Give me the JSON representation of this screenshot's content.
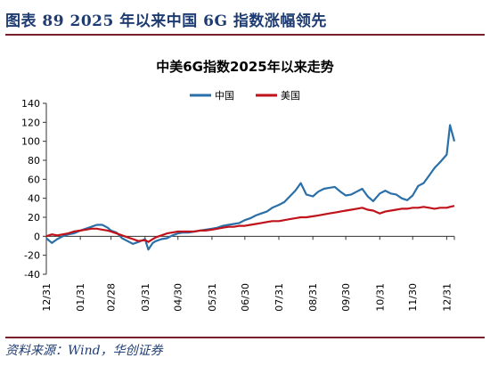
{
  "header": {
    "title": "图表 89   2025 年以来中国 6G 指数涨幅领先"
  },
  "footer": {
    "source": "资料来源：Wind，华创证券"
  },
  "colors": {
    "china": "#2a6fa8",
    "usa": "#c0121a",
    "accent": "#7a1f2b",
    "header_text": "#1e3c72"
  },
  "chart_data": {
    "type": "line",
    "title": "中美6G指数2025年以来走势",
    "xlabel": "",
    "ylabel": "",
    "ylim": [
      -40,
      140
    ],
    "yticks": [
      -40,
      -20,
      0,
      20,
      40,
      60,
      80,
      100,
      120,
      140
    ],
    "xlim": [
      "2024-12-31",
      "2026-01-07"
    ],
    "xticks": [
      "12/31",
      "01/31",
      "02/28",
      "03/31",
      "04/30",
      "05/31",
      "06/30",
      "07/31",
      "08/31",
      "09/30",
      "10/31",
      "11/30",
      "12/31"
    ],
    "legend": "top-center",
    "grid": false,
    "series": [
      {
        "name": "中国",
        "x": [
          "2024-12-31",
          "2025-01-05",
          "2025-01-10",
          "2025-01-15",
          "2025-01-20",
          "2025-01-25",
          "2025-01-31",
          "2025-02-05",
          "2025-02-10",
          "2025-02-15",
          "2025-02-20",
          "2025-02-25",
          "2025-02-28",
          "2025-03-05",
          "2025-03-10",
          "2025-03-15",
          "2025-03-20",
          "2025-03-25",
          "2025-03-31",
          "2025-04-03",
          "2025-04-07",
          "2025-04-10",
          "2025-04-15",
          "2025-04-20",
          "2025-04-25",
          "2025-04-30",
          "2025-05-05",
          "2025-05-10",
          "2025-05-15",
          "2025-05-20",
          "2025-05-25",
          "2025-05-31",
          "2025-06-05",
          "2025-06-10",
          "2025-06-15",
          "2025-06-20",
          "2025-06-25",
          "2025-06-30",
          "2025-07-05",
          "2025-07-10",
          "2025-07-15",
          "2025-07-20",
          "2025-07-25",
          "2025-07-31",
          "2025-08-05",
          "2025-08-10",
          "2025-08-15",
          "2025-08-20",
          "2025-08-25",
          "2025-08-31",
          "2025-09-05",
          "2025-09-10",
          "2025-09-15",
          "2025-09-20",
          "2025-09-25",
          "2025-09-30",
          "2025-10-05",
          "2025-10-10",
          "2025-10-15",
          "2025-10-20",
          "2025-10-25",
          "2025-10-31",
          "2025-11-05",
          "2025-11-10",
          "2025-11-15",
          "2025-11-20",
          "2025-11-25",
          "2025-11-30",
          "2025-12-05",
          "2025-12-10",
          "2025-12-15",
          "2025-12-20",
          "2025-12-25",
          "2025-12-31",
          "2026-01-03",
          "2026-01-07"
        ],
        "y": [
          -2,
          -7,
          -3,
          0,
          2,
          3,
          6,
          8,
          10,
          12,
          12,
          9,
          6,
          4,
          -2,
          -5,
          -8,
          -6,
          -3,
          -14,
          -7,
          -5,
          -3,
          -2,
          1,
          3,
          4,
          4,
          5,
          6,
          7,
          8,
          9,
          11,
          12,
          13,
          14,
          17,
          19,
          22,
          24,
          26,
          30,
          33,
          36,
          42,
          48,
          56,
          44,
          42,
          47,
          50,
          51,
          52,
          47,
          43,
          44,
          47,
          50,
          42,
          37,
          45,
          48,
          45,
          44,
          40,
          38,
          43,
          53,
          56,
          64,
          72,
          78,
          86,
          117,
          100
        ]
      },
      {
        "name": "美国",
        "x": [
          "2024-12-31",
          "2025-01-05",
          "2025-01-10",
          "2025-01-15",
          "2025-01-20",
          "2025-01-25",
          "2025-01-31",
          "2025-02-05",
          "2025-02-10",
          "2025-02-15",
          "2025-02-20",
          "2025-02-25",
          "2025-02-28",
          "2025-03-05",
          "2025-03-10",
          "2025-03-15",
          "2025-03-20",
          "2025-03-25",
          "2025-03-31",
          "2025-04-03",
          "2025-04-07",
          "2025-04-10",
          "2025-04-15",
          "2025-04-20",
          "2025-04-25",
          "2025-04-30",
          "2025-05-05",
          "2025-05-10",
          "2025-05-15",
          "2025-05-20",
          "2025-05-25",
          "2025-05-31",
          "2025-06-05",
          "2025-06-10",
          "2025-06-15",
          "2025-06-20",
          "2025-06-25",
          "2025-06-30",
          "2025-07-05",
          "2025-07-10",
          "2025-07-15",
          "2025-07-20",
          "2025-07-25",
          "2025-07-31",
          "2025-08-05",
          "2025-08-10",
          "2025-08-15",
          "2025-08-20",
          "2025-08-25",
          "2025-08-31",
          "2025-09-05",
          "2025-09-10",
          "2025-09-15",
          "2025-09-20",
          "2025-09-25",
          "2025-09-30",
          "2025-10-05",
          "2025-10-10",
          "2025-10-15",
          "2025-10-20",
          "2025-10-25",
          "2025-10-31",
          "2025-11-05",
          "2025-11-10",
          "2025-11-15",
          "2025-11-20",
          "2025-11-25",
          "2025-11-30",
          "2025-12-05",
          "2025-12-10",
          "2025-12-15",
          "2025-12-20",
          "2025-12-25",
          "2025-12-31",
          "2026-01-03",
          "2026-01-07"
        ],
        "y": [
          0,
          2,
          1,
          2,
          3,
          5,
          6,
          7,
          8,
          8,
          7,
          6,
          5,
          3,
          1,
          -1,
          -3,
          -5,
          -4,
          -6,
          -3,
          -1,
          1,
          3,
          4,
          5,
          5,
          5,
          5,
          6,
          6,
          7,
          8,
          9,
          10,
          10,
          11,
          11,
          12,
          13,
          14,
          15,
          16,
          16,
          17,
          18,
          19,
          20,
          20,
          21,
          22,
          23,
          24,
          25,
          26,
          27,
          28,
          29,
          30,
          28,
          27,
          24,
          26,
          27,
          28,
          29,
          29,
          30,
          30,
          31,
          30,
          29,
          30,
          30,
          31,
          32
        ]
      }
    ]
  }
}
